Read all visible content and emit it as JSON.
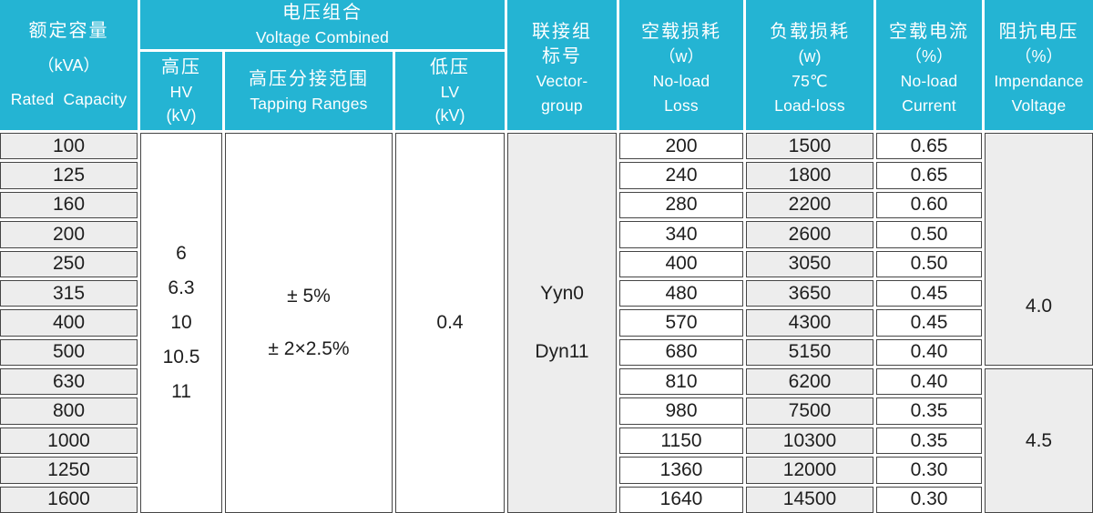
{
  "colors": {
    "header_bg": "#24b4d3",
    "header_text": "#ffffff",
    "gray_cell": "#ededed",
    "white_cell": "#ffffff",
    "border": "#454545"
  },
  "header": {
    "rated_capacity": {
      "zh": "额定容量",
      "unit": "（kVA）",
      "en": "Rated Capacity"
    },
    "voltage_combined": {
      "zh": "电压组合",
      "en": "Voltage Combined"
    },
    "hv": {
      "zh": "高压",
      "en": "HV",
      "unit": "(kV)"
    },
    "tapping": {
      "zh": "高压分接范围",
      "en": "Tapping Ranges"
    },
    "lv": {
      "zh": "低压",
      "en": "LV",
      "unit": "(kV)"
    },
    "vector_group": {
      "zh_line1": "联接组",
      "zh_line2": "标号",
      "en_line1": "Vector-",
      "en_line2": "group"
    },
    "no_load_loss": {
      "zh": "空载损耗",
      "unit": "（w）",
      "en_line1": "No-load",
      "en_line2": "Loss"
    },
    "load_loss": {
      "zh": "负载损耗",
      "unit": "(w)",
      "temp": "75℃",
      "en": "Load-loss"
    },
    "no_load_current": {
      "zh": "空载电流",
      "unit": "（%）",
      "en_line1": "No-load",
      "en_line2": "Current"
    },
    "impedance_voltage": {
      "zh": "阻抗电压",
      "unit": "（%）",
      "en_line1": "Impendance",
      "en_line2": "Voltage"
    }
  },
  "merged_cells": {
    "hv_values": [
      "6",
      "6.3",
      "10",
      "10.5",
      "11"
    ],
    "tapping_values": [
      "± 5%",
      "± 2×2.5%"
    ],
    "lv_value": "0.4",
    "vector_values": [
      "Yyn0",
      "Dyn11"
    ],
    "impedance_values": [
      "4.0",
      "4.5"
    ]
  },
  "rows": [
    {
      "capacity": "100",
      "no_load_loss": "200",
      "load_loss": "1500",
      "no_load_current": "0.65"
    },
    {
      "capacity": "125",
      "no_load_loss": "240",
      "load_loss": "1800",
      "no_load_current": "0.65"
    },
    {
      "capacity": "160",
      "no_load_loss": "280",
      "load_loss": "2200",
      "no_load_current": "0.60"
    },
    {
      "capacity": "200",
      "no_load_loss": "340",
      "load_loss": "2600",
      "no_load_current": "0.50"
    },
    {
      "capacity": "250",
      "no_load_loss": "400",
      "load_loss": "3050",
      "no_load_current": "0.50"
    },
    {
      "capacity": "315",
      "no_load_loss": "480",
      "load_loss": "3650",
      "no_load_current": "0.45"
    },
    {
      "capacity": "400",
      "no_load_loss": "570",
      "load_loss": "4300",
      "no_load_current": "0.45"
    },
    {
      "capacity": "500",
      "no_load_loss": "680",
      "load_loss": "5150",
      "no_load_current": "0.40"
    },
    {
      "capacity": "630",
      "no_load_loss": "810",
      "load_loss": "6200",
      "no_load_current": "0.40"
    },
    {
      "capacity": "800",
      "no_load_loss": "980",
      "load_loss": "7500",
      "no_load_current": "0.35"
    },
    {
      "capacity": "1000",
      "no_load_loss": "1150",
      "load_loss": "10300",
      "no_load_current": "0.35"
    },
    {
      "capacity": "1250",
      "no_load_loss": "1360",
      "load_loss": "12000",
      "no_load_current": "0.30"
    },
    {
      "capacity": "1600",
      "no_load_loss": "1640",
      "load_loss": "14500",
      "no_load_current": "0.30"
    }
  ]
}
